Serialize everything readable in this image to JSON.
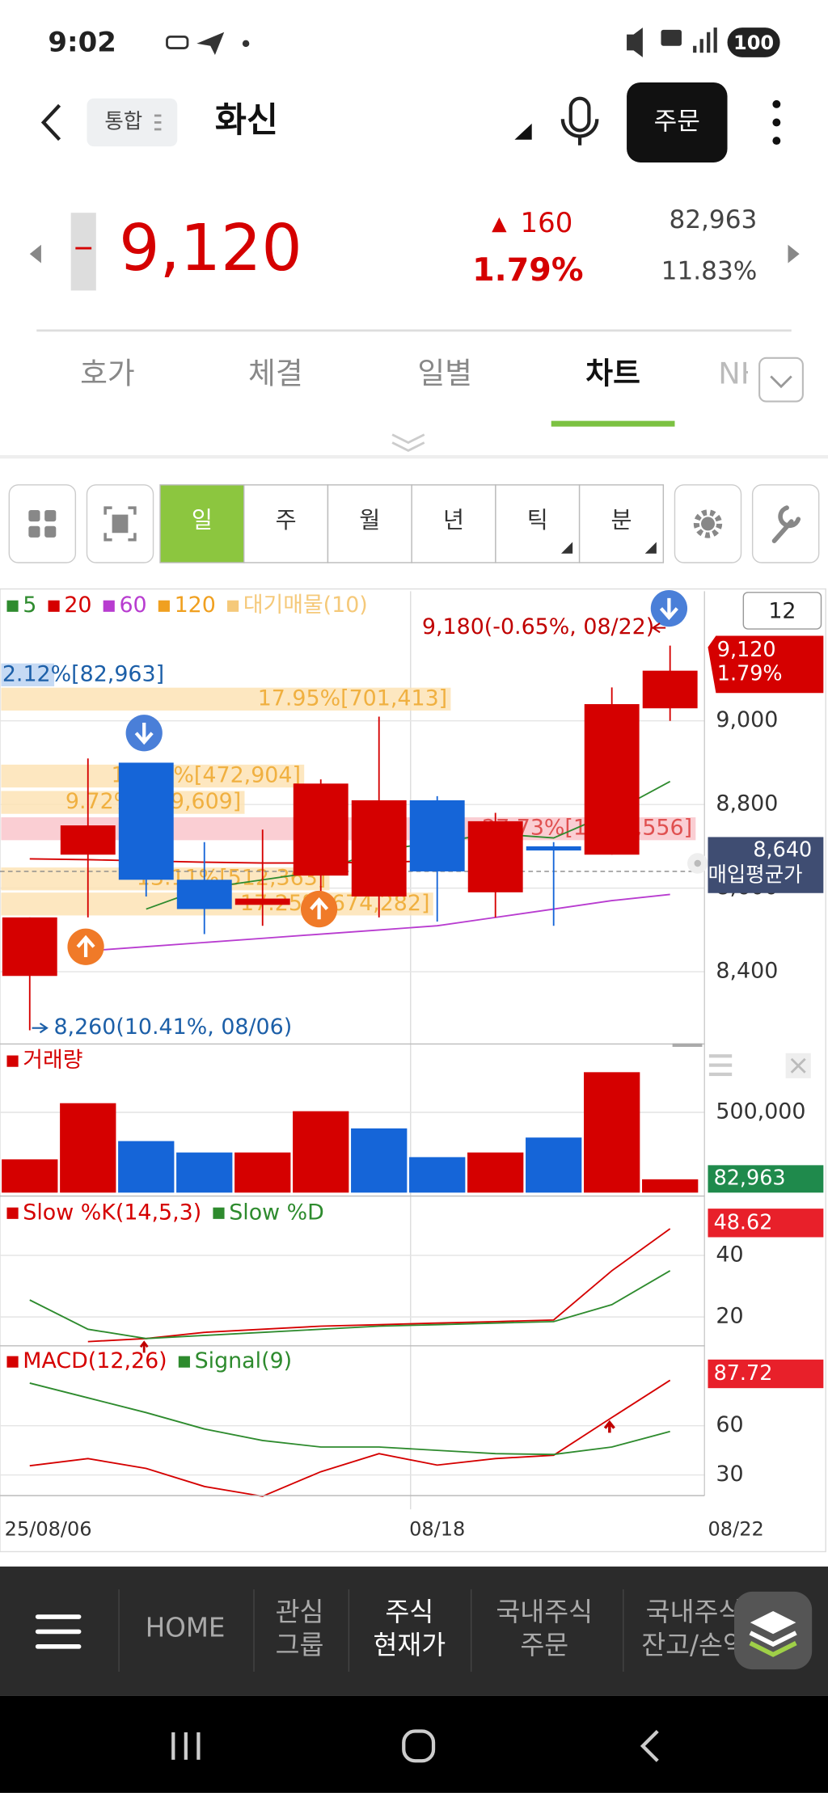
{
  "status_bar": {
    "time": "9:02",
    "battery": "100"
  },
  "header": {
    "market": "통합",
    "name": "화신",
    "order_button": "주문"
  },
  "quote": {
    "price": "9,120",
    "change": "160",
    "change_pct": "1.79%",
    "volume": "82,963",
    "turnover": "11.83%"
  },
  "tabs": [
    "호가",
    "체결",
    "일별",
    "차트",
    "NH"
  ],
  "periods": [
    "일",
    "주",
    "월",
    "년",
    "틱",
    "분"
  ],
  "period_count": "12",
  "annotations": {
    "high_note": "9,180(-0.65%, 08/22)",
    "low_note": "8,260(10.41%, 08/06)",
    "avg_text": "매입평균가"
  },
  "chart_data": [
    {
      "type": "candlestick",
      "categories": [
        "25/08/06",
        null,
        null,
        null,
        null,
        null,
        null,
        "08/18",
        null,
        null,
        null,
        "08/22"
      ],
      "open": [
        8390,
        8680,
        8900,
        8620,
        8560,
        8630,
        8580,
        8810,
        8590,
        8700,
        8680,
        9030
      ],
      "high": [
        8530,
        8910,
        8900,
        8710,
        8740,
        8860,
        9010,
        8820,
        8780,
        8710,
        9080,
        9180
      ],
      "low": [
        8260,
        8530,
        8580,
        8490,
        8510,
        8560,
        8530,
        8520,
        8530,
        8510,
        8680,
        9000
      ],
      "close": [
        8530,
        8750,
        8620,
        8550,
        8575,
        8850,
        8810,
        8640,
        8760,
        8690,
        9040,
        9120
      ],
      "up_color": "#d50000",
      "down_color": "#1565d8",
      "ylim": [
        8230,
        9310
      ],
      "yticks": [
        {
          "value": 8400,
          "label": "8,400"
        },
        {
          "value": 8600,
          "label": "8,600"
        },
        {
          "value": 8800,
          "label": "8,800"
        },
        {
          "value": 9000,
          "label": "9,000"
        }
      ],
      "series": [
        {
          "name": "5",
          "color": "#2e8b2e",
          "values": [
            null,
            null,
            8550,
            8600,
            8620,
            8640,
            8690,
            8710,
            8730,
            8720,
            8780,
            8855
          ]
        },
        {
          "name": "20",
          "color": "#d50000",
          "values": [
            8670,
            8668,
            8665,
            8662,
            8660,
            8660,
            8662,
            8665,
            null,
            null,
            null,
            null
          ]
        },
        {
          "name": "60",
          "color": "#b83cd0",
          "values": [
            null,
            8450,
            8460,
            8470,
            8480,
            8490,
            8500,
            8510,
            8530,
            8550,
            8570,
            8585
          ]
        }
      ],
      "legend_extra": [
        {
          "name": "120",
          "color": "#f0a020"
        },
        {
          "name": "대기매물(10)",
          "color": "#f5c97a"
        }
      ],
      "bands": [
        {
          "value": 9110,
          "share": 2.12,
          "label": "2.12%[82,963]",
          "color": "#bcd4f2",
          "text_color": "#1c5fa8"
        },
        {
          "value": 9052,
          "share": 17.95,
          "label": "17.95%[701,413]",
          "color": "#fde3b5",
          "text_color": "#f0b040"
        },
        {
          "value": 8868,
          "share": 12.1,
          "label": "12.10%[472,904]",
          "color": "#fde3b5",
          "text_color": "#f0b040"
        },
        {
          "value": 8805,
          "share": 9.72,
          "label": "9.72%[379,609]",
          "color": "#fde3b5",
          "text_color": "#f0b040"
        },
        {
          "value": 8742,
          "share": 27.73,
          "label": "27.73%[1,083,556]",
          "color": "#f9c6cb",
          "text_color": "#e05050"
        },
        {
          "value": 8622,
          "share": 13.11,
          "label": "13.11%[512,363]",
          "color": "#fde3b5",
          "text_color": "#f0b040"
        },
        {
          "value": 8562,
          "share": 17.25,
          "label": "17.25%[674,282]",
          "color": "#fde3b5",
          "text_color": "#f0b040"
        }
      ],
      "avg_price": {
        "value": 8640,
        "label": "8,640"
      }
    },
    {
      "type": "bar",
      "title": "거래량",
      "values": [
        207000,
        557000,
        321000,
        250000,
        250000,
        507000,
        400000,
        221000,
        250000,
        343000,
        750000,
        82963
      ],
      "colors": [
        "#d50000",
        "#d50000",
        "#1565d8",
        "#1565d8",
        "#d50000",
        "#d50000",
        "#1565d8",
        "#1565d8",
        "#d50000",
        "#1565d8",
        "#d50000",
        "#d50000"
      ],
      "ylim": [
        0,
        890000
      ],
      "yticks": [
        {
          "value": 500000,
          "label": "500,000"
        }
      ]
    },
    {
      "type": "line",
      "series": [
        {
          "name": "Slow %K(14,5,3)",
          "color": "#d50000",
          "values": [
            null,
            12,
            13,
            15,
            16,
            17,
            17.5,
            18,
            18.5,
            19,
            35,
            48.62
          ]
        },
        {
          "name": "Slow %D",
          "color": "#2e8b2e",
          "values": [
            25.5,
            16,
            13,
            14,
            15,
            16,
            17,
            17.5,
            18,
            18.5,
            24,
            35
          ]
        }
      ],
      "ylim": [
        11,
        58.5
      ],
      "yticks": [
        20,
        40
      ]
    },
    {
      "type": "line",
      "series": [
        {
          "name": "MACD(12,26)",
          "color": "#d50000",
          "values": [
            35.6,
            40,
            34,
            23,
            17,
            32,
            43,
            36,
            40,
            42,
            65,
            87.72
          ]
        },
        {
          "name": "Signal(9)",
          "color": "#2e8b2e",
          "values": [
            86,
            77,
            68,
            58,
            51,
            47,
            47,
            45,
            43,
            42.5,
            47,
            56.5
          ]
        }
      ],
      "ylim": [
        17.4,
        108
      ],
      "yticks": [
        30,
        60
      ]
    }
  ],
  "nav": [
    [
      "HOME"
    ],
    [
      "관심",
      "그룹"
    ],
    [
      "주식",
      "현재가"
    ],
    [
      "국내주식",
      "주문"
    ],
    [
      "국내주식",
      "잔고/손익"
    ]
  ]
}
